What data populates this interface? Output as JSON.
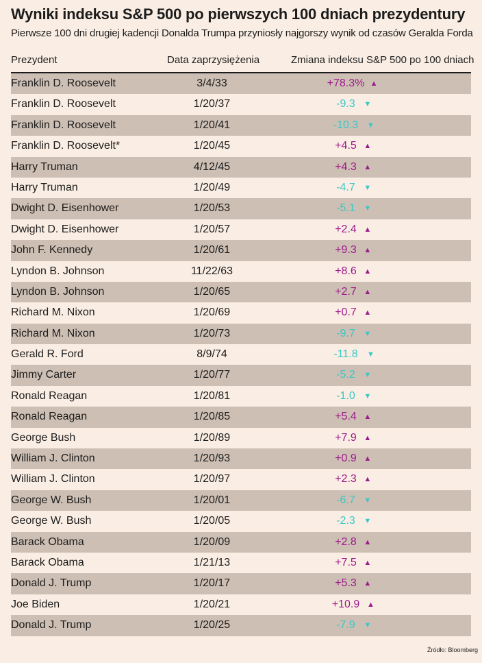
{
  "title": "Wyniki indeksu S&P 500 po pierwszych 100 dniach prezydentury",
  "subtitle": "Pierwsze 100 dni drugiej kadencji Donalda Trumpa przyniosły najgorszy wynik od czasów Geralda Forda",
  "source": "Źródło: Bloomberg",
  "colors": {
    "positive": "#9c1a8b",
    "negative": "#3ac7c7",
    "background": "#faeee4",
    "row_shade": "#cdbfb4"
  },
  "chart_data": {
    "type": "table",
    "columns": [
      "Prezydent",
      "Data zaprzysiężenia",
      "Zmiana indeksu S&P 500 po 100 dniach"
    ],
    "rows": [
      {
        "president": "Franklin D. Roosevelt",
        "date": "3/4/33",
        "change": "+78.3%",
        "value": 78.3
      },
      {
        "president": "Franklin D. Roosevelt",
        "date": "1/20/37",
        "change": "-9.3",
        "value": -9.3
      },
      {
        "president": "Franklin D. Roosevelt",
        "date": "1/20/41",
        "change": "-10.3",
        "value": -10.3
      },
      {
        "president": "Franklin D. Roosevelt*",
        "date": "1/20/45",
        "change": "+4.5",
        "value": 4.5
      },
      {
        "president": "Harry Truman",
        "date": "4/12/45",
        "change": "+4.3",
        "value": 4.3
      },
      {
        "president": "Harry Truman",
        "date": "1/20/49",
        "change": "-4.7",
        "value": -4.7
      },
      {
        "president": "Dwight D. Eisenhower",
        "date": "1/20/53",
        "change": "-5.1",
        "value": -5.1
      },
      {
        "president": "Dwight D. Eisenhower",
        "date": "1/20/57",
        "change": "+2.4",
        "value": 2.4
      },
      {
        "president": "John F. Kennedy",
        "date": "1/20/61",
        "change": "+9.3",
        "value": 9.3
      },
      {
        "president": "Lyndon B. Johnson",
        "date": "11/22/63",
        "change": "+8.6",
        "value": 8.6
      },
      {
        "president": "Lyndon B. Johnson",
        "date": "1/20/65",
        "change": "+2.7",
        "value": 2.7
      },
      {
        "president": "Richard M. Nixon",
        "date": "1/20/69",
        "change": "+0.7",
        "value": 0.7
      },
      {
        "president": "Richard M. Nixon",
        "date": "1/20/73",
        "change": "-9.7",
        "value": -9.7
      },
      {
        "president": "Gerald R. Ford",
        "date": "8/9/74",
        "change": "-11.8",
        "value": -11.8
      },
      {
        "president": "Jimmy Carter",
        "date": "1/20/77",
        "change": "-5.2",
        "value": -5.2
      },
      {
        "president": "Ronald Reagan",
        "date": "1/20/81",
        "change": "-1.0",
        "value": -1.0
      },
      {
        "president": "Ronald Reagan",
        "date": "1/20/85",
        "change": "+5.4",
        "value": 5.4
      },
      {
        "president": "George Bush",
        "date": "1/20/89",
        "change": "+7.9",
        "value": 7.9
      },
      {
        "president": "William J. Clinton",
        "date": "1/20/93",
        "change": "+0.9",
        "value": 0.9
      },
      {
        "president": "William J. Clinton",
        "date": "1/20/97",
        "change": "+2.3",
        "value": 2.3
      },
      {
        "president": "George W. Bush",
        "date": "1/20/01",
        "change": "-6.7",
        "value": -6.7
      },
      {
        "president": "George W. Bush",
        "date": "1/20/05",
        "change": "-2.3",
        "value": -2.3
      },
      {
        "president": "Barack Obama",
        "date": "1/20/09",
        "change": "+2.8",
        "value": 2.8
      },
      {
        "president": "Barack Obama",
        "date": "1/21/13",
        "change": "+7.5",
        "value": 7.5
      },
      {
        "president": "Donald J. Trump",
        "date": "1/20/17",
        "change": "+5.3",
        "value": 5.3
      },
      {
        "president": "Joe Biden",
        "date": "1/20/21",
        "change": "+10.9",
        "value": 10.9
      },
      {
        "president": "Donald J. Trump",
        "date": "1/20/25",
        "change": "-7.9",
        "value": -7.9
      }
    ]
  }
}
